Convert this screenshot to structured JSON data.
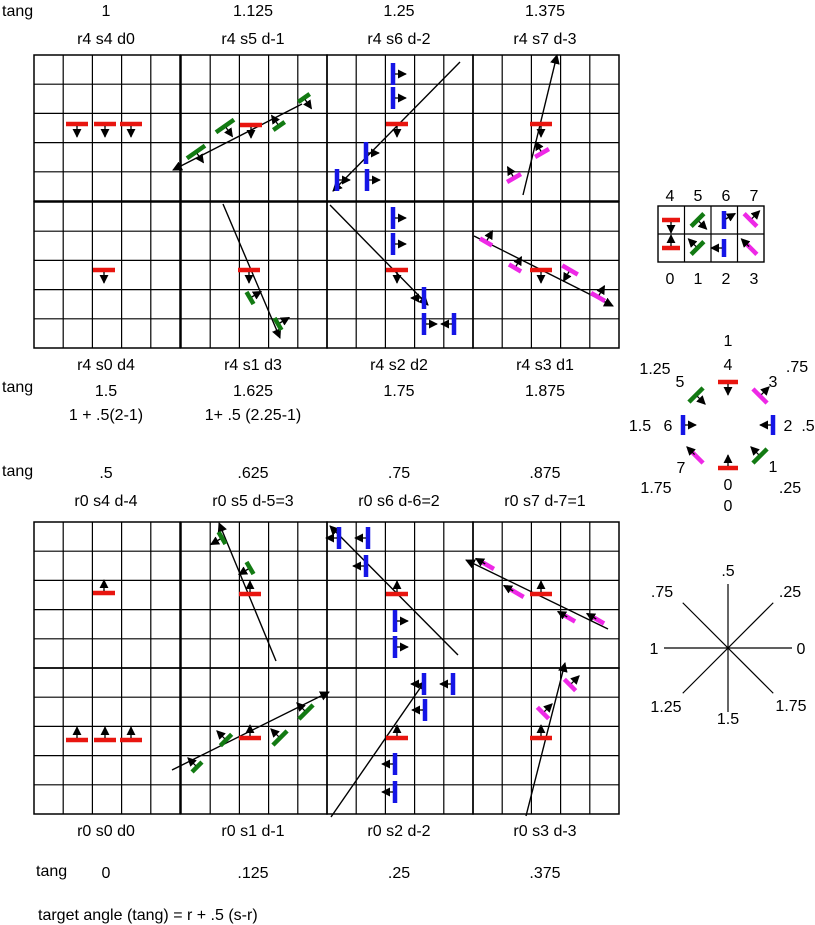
{
  "colors": {
    "red": "#e8150f",
    "green": "#127a12",
    "blue": "#1515e6",
    "magenta": "#ee28e6",
    "line": "#000000"
  },
  "tang_label": "tang",
  "footer_formula": "target angle (tang) = r + .5 (s-r)",
  "top_tang_values": [
    "1",
    "1.125",
    "1.25",
    "1.375"
  ],
  "top_titles": [
    "r4 s4 d0",
    "r4 s5 d-1",
    "r4 s6 d-2",
    "r4 s7 d-3"
  ],
  "mid_titles": [
    "r4 s0 d4",
    "r4 s1 d3",
    "r4 s2 d2",
    "r4 s3 d1"
  ],
  "mid_tang_values": [
    "1.5",
    "1.625",
    "1.75",
    "1.875"
  ],
  "mid_formulas": [
    "1 + .5(2-1)",
    "1+ .5 (2.25-1)"
  ],
  "lower_tang_values": [
    ".5",
    ".625",
    ".75",
    ".875"
  ],
  "lower_titles": [
    "r0 s4 d-4",
    "r0 s5 d-5=3",
    "r0 s6 d-6=2",
    "r0 s7 d-7=1"
  ],
  "bottom_titles": [
    "r0 s0 d0",
    "r0 s1 d-1",
    "r0 s2 d-2",
    "r0 s3 d-3"
  ],
  "bottom_tang_values": [
    "0",
    ".125",
    ".25",
    ".375"
  ],
  "legend_grid": {
    "top_numbers": [
      "4",
      "5",
      "6",
      "7"
    ],
    "bottom_numbers": [
      "0",
      "1",
      "2",
      "3"
    ]
  },
  "octagon_labels": {
    "top": [
      "1",
      "4"
    ],
    "top_right": [
      "3",
      ".75"
    ],
    "right": [
      "2",
      ".5"
    ],
    "bottom_right": [
      "1",
      ".25"
    ],
    "bottom": [
      "0",
      "0"
    ],
    "bottom_left": [
      "7",
      "1.75"
    ],
    "left": [
      "1.5",
      "6"
    ],
    "top_left": [
      "1.25",
      "5"
    ]
  },
  "compass_labels": {
    "top": ".5",
    "top_right": ".25",
    "right": "0",
    "bottom_right": "1.75",
    "bottom": "1.5",
    "bottom_left": "1.25",
    "left": "1",
    "top_left": ".75"
  }
}
